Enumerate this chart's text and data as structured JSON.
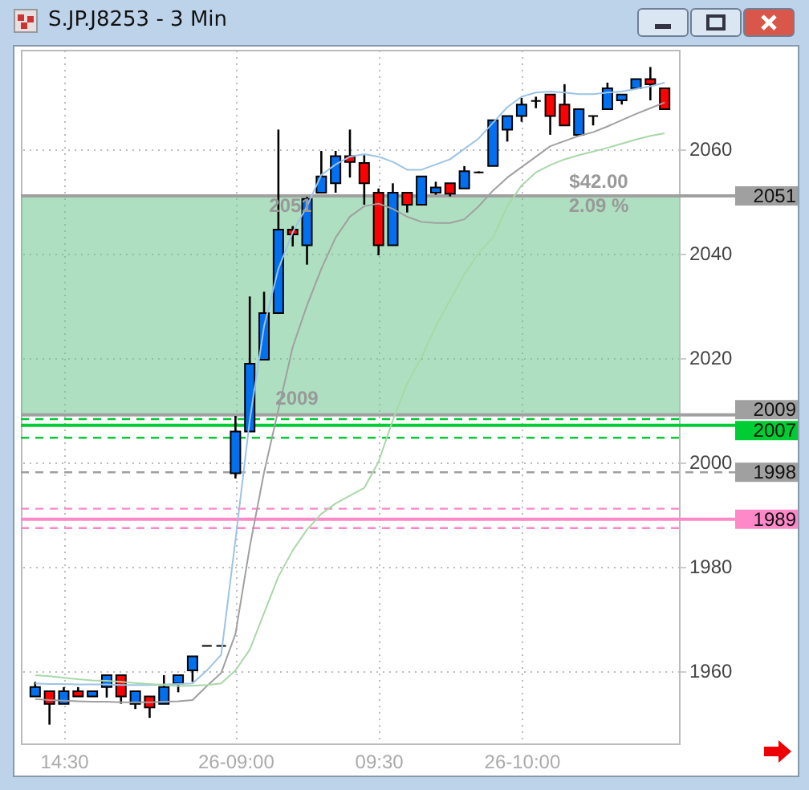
{
  "chart_data": {
    "type": "candlestick",
    "title": "S.JP.J8253 - 3 Min",
    "categories": [
      null,
      null,
      "14:30",
      null,
      null,
      null,
      null,
      null,
      null,
      null,
      null,
      null,
      null,
      null,
      "26-09:00",
      null,
      null,
      null,
      null,
      null,
      null,
      null,
      null,
      null,
      "09:30",
      null,
      null,
      null,
      null,
      null,
      null,
      null,
      null,
      null,
      "26-10:00",
      null,
      null,
      null,
      null,
      null,
      null,
      null,
      null,
      null,
      null
    ],
    "ohlc": [
      [
        1955.0,
        1957.8,
        1955.0,
        1956.8
      ],
      [
        1956.0,
        1956.0,
        1949.6,
        1953.6
      ],
      [
        1953.6,
        1956.8,
        1953.6,
        1956.0
      ],
      [
        1956.0,
        1956.8,
        1955.0,
        1955.0
      ],
      [
        1955.0,
        1956.0,
        1955.0,
        1956.0
      ],
      [
        1956.8,
        1959.1,
        1954.8,
        1959.1
      ],
      [
        1959.1,
        1959.1,
        1953.6,
        1955.0
      ],
      [
        1953.6,
        1956.0,
        1952.6,
        1956.0
      ],
      [
        1955.0,
        1955.0,
        1950.9,
        1952.9
      ],
      [
        1953.6,
        1959.1,
        1953.6,
        1956.8
      ],
      [
        1957.5,
        1959.1,
        1955.8,
        1959.1
      ],
      [
        1960.0,
        1962.7,
        1957.8,
        1962.7
      ],
      [
        1964.7,
        1964.7,
        1964.7,
        1964.7
      ],
      [
        1964.7,
        1964.7,
        1964.7,
        1964.7
      ],
      [
        1997.8,
        2008.8,
        1996.8,
        2005.8
      ],
      [
        2005.8,
        2031.7,
        2005.8,
        2018.8
      ],
      [
        2019.6,
        2032.6,
        2019.6,
        2028.5
      ],
      [
        2028.5,
        2063.7,
        2028.5,
        2044.5
      ],
      [
        2044.5,
        2045.2,
        2041.3,
        2043.6
      ],
      [
        2041.5,
        2050.8,
        2037.8,
        2050.4
      ],
      [
        2051.6,
        2059.6,
        2051.6,
        2054.7
      ],
      [
        2053.4,
        2059.6,
        2051.6,
        2058.6
      ],
      [
        2058.6,
        2063.7,
        2054.5,
        2057.5
      ],
      [
        2057.3,
        2058.8,
        2049.3,
        2053.4
      ],
      [
        2051.6,
        2052.4,
        2039.6,
        2041.5
      ],
      [
        2041.5,
        2053.4,
        2041.5,
        2051.6
      ],
      [
        2051.6,
        2051.6,
        2047.8,
        2049.3
      ],
      [
        2049.3,
        2054.7,
        2049.3,
        2054.7
      ],
      [
        2051.6,
        2053.7,
        2051.2,
        2052.6
      ],
      [
        2053.4,
        2053.4,
        2050.9,
        2051.4
      ],
      [
        2052.4,
        2056.7,
        2052.4,
        2055.7
      ],
      [
        2055.5,
        2055.7,
        2055.3,
        2055.5
      ],
      [
        2056.7,
        2065.5,
        2056.7,
        2065.5
      ],
      [
        2063.7,
        2066.3,
        2061.4,
        2066.3
      ],
      [
        2066.3,
        2069.8,
        2065.2,
        2068.5
      ],
      [
        2069.2,
        2070.0,
        2067.8,
        2069.2
      ],
      [
        2070.4,
        2070.4,
        2062.7,
        2066.3
      ],
      [
        2068.5,
        2072.4,
        2064.5,
        2064.5
      ],
      [
        2062.7,
        2067.6,
        2062.7,
        2067.6
      ],
      [
        2066.3,
        2066.3,
        2064.5,
        2066.3
      ],
      [
        2067.6,
        2072.7,
        2067.6,
        2071.6
      ],
      [
        2069.3,
        2070.4,
        2068.5,
        2070.4
      ],
      [
        2071.6,
        2073.4,
        2071.6,
        2073.4
      ],
      [
        2073.4,
        2075.7,
        2069.3,
        2072.4
      ],
      [
        2071.6,
        2071.6,
        2067.6,
        2067.6
      ]
    ],
    "colors": [
      "#0070f0",
      "#ff0000",
      "#0070f0",
      "#ff0000",
      "#0070f0",
      "#0070f0",
      "#ff0000",
      "#0070f0",
      "#ff0000",
      "#0070f0",
      "#0070f0",
      "#0070f0",
      "#000000",
      "#000000",
      "#0070f0",
      "#0070f0",
      "#0070f0",
      "#0070f0",
      "#ff0000",
      "#0070f0",
      "#0070f0",
      "#0070f0",
      "#ff0000",
      "#ff0000",
      "#ff0000",
      "#0070f0",
      "#ff0000",
      "#0070f0",
      "#0070f0",
      "#ff0000",
      "#0070f0",
      "#000000",
      "#0070f0",
      "#0070f0",
      "#0070f0",
      "#000000",
      "#ff0000",
      "#ff0000",
      "#0070f0",
      "#000000",
      "#0070f0",
      "#0070f0",
      "#0070f0",
      "#ff0000",
      "#ff0000"
    ],
    "series": [
      {
        "type": "line",
        "color": "#9cc3e6",
        "values": [
          1957.5,
          1957.4,
          1957.4,
          1957.3,
          1957.3,
          1957.3,
          1957.2,
          1957.2,
          1957.2,
          1957.3,
          1957.4,
          1957.5,
          1960.0,
          1963.0,
          1985.0,
          2008,
          2026,
          2037,
          2044,
          2049,
          2055,
          2057,
          2058.5,
          2059,
          2058.5,
          2057.5,
          2056,
          2056,
          2057,
          2058,
          2060,
          2062,
          2065,
          2068,
          2070,
          2070.8,
          2071,
          2070.8,
          2070.5,
          2070.5,
          2070.8,
          2071,
          2071.5,
          2072,
          2072.7
        ]
      },
      {
        "type": "line",
        "color": "#a0a0a0",
        "values": [
          1954.5,
          1954.3,
          1954.2,
          1954.1,
          1954.0,
          1954.0,
          1953.9,
          1953.9,
          1953.9,
          1954.0,
          1954.1,
          1954.3,
          1957,
          1959.5,
          1967,
          1983.7,
          1998,
          2010,
          2022,
          2030,
          2037,
          2043,
          2047,
          2049,
          2049.5,
          2048.5,
          2047,
          2046,
          2045.8,
          2045.8,
          2046.5,
          2049,
          2052,
          2054.5,
          2056.5,
          2058.5,
          2060.5,
          2061.5,
          2062.5,
          2063.2,
          2064.3,
          2065.5,
          2066.7,
          2067.8,
          2068.9
        ]
      },
      {
        "type": "line",
        "color": "#a8d8a8",
        "values": [
          1959.1,
          1958.9,
          1958.6,
          1958.3,
          1958.1,
          1958.0,
          1957.8,
          1957.6,
          1957.4,
          1957.2,
          1957.0,
          1957.1,
          1957.2,
          1957.5,
          1960,
          1964,
          1971,
          1978,
          1983,
          1987,
          1990,
          1992,
          1993.5,
          1995,
          2000,
          2008,
          2015,
          2020,
          2026,
          2031,
          2036,
          2040,
          2043,
          2049,
          2053,
          2055.5,
          2056.9,
          2058,
          2058.8,
          2059.5,
          2060.2,
          2061,
          2061.8,
          2062.5,
          2063
        ]
      }
    ],
    "ylim": [
      1946,
      2079
    ],
    "yticks": [
      1960,
      1980,
      2000,
      2020,
      2040,
      2060
    ],
    "grid": true,
    "ref_lines": [
      {
        "axis": "y",
        "value": 2051,
        "label": "2051",
        "color": "#a0a0a0",
        "line_style": "solid"
      },
      {
        "axis": "y",
        "value": 2009,
        "label": "2009",
        "color": "#a0a0a0",
        "line_style": "solid"
      },
      {
        "axis": "y",
        "value": 2008.2,
        "color": "#00cc33",
        "line_style": "dashed"
      },
      {
        "axis": "y",
        "value": 2007,
        "label": "2007",
        "color": "#00cc33",
        "line_style": "solid"
      },
      {
        "axis": "y",
        "value": 2004.6,
        "color": "#00cc33",
        "line_style": "dashed"
      },
      {
        "axis": "y",
        "value": 1998,
        "label": "1998",
        "color": "#a0a0a0",
        "line_style": "dashed"
      },
      {
        "axis": "y",
        "value": 1991,
        "color": "#ff88c8",
        "line_style": "dashed"
      },
      {
        "axis": "y",
        "value": 1989,
        "label": "1989",
        "color": "#ff88c8",
        "line_style": "solid"
      },
      {
        "axis": "y",
        "value": 1987.3,
        "color": "#ff88c8",
        "line_style": "dashed"
      }
    ],
    "bands": [
      {
        "axis": "y",
        "from": 2009,
        "to": 2051,
        "color": "#6cc48c"
      }
    ],
    "annotations": [
      "$42.00",
      "2.09 %",
      "2051",
      "2009"
    ]
  }
}
